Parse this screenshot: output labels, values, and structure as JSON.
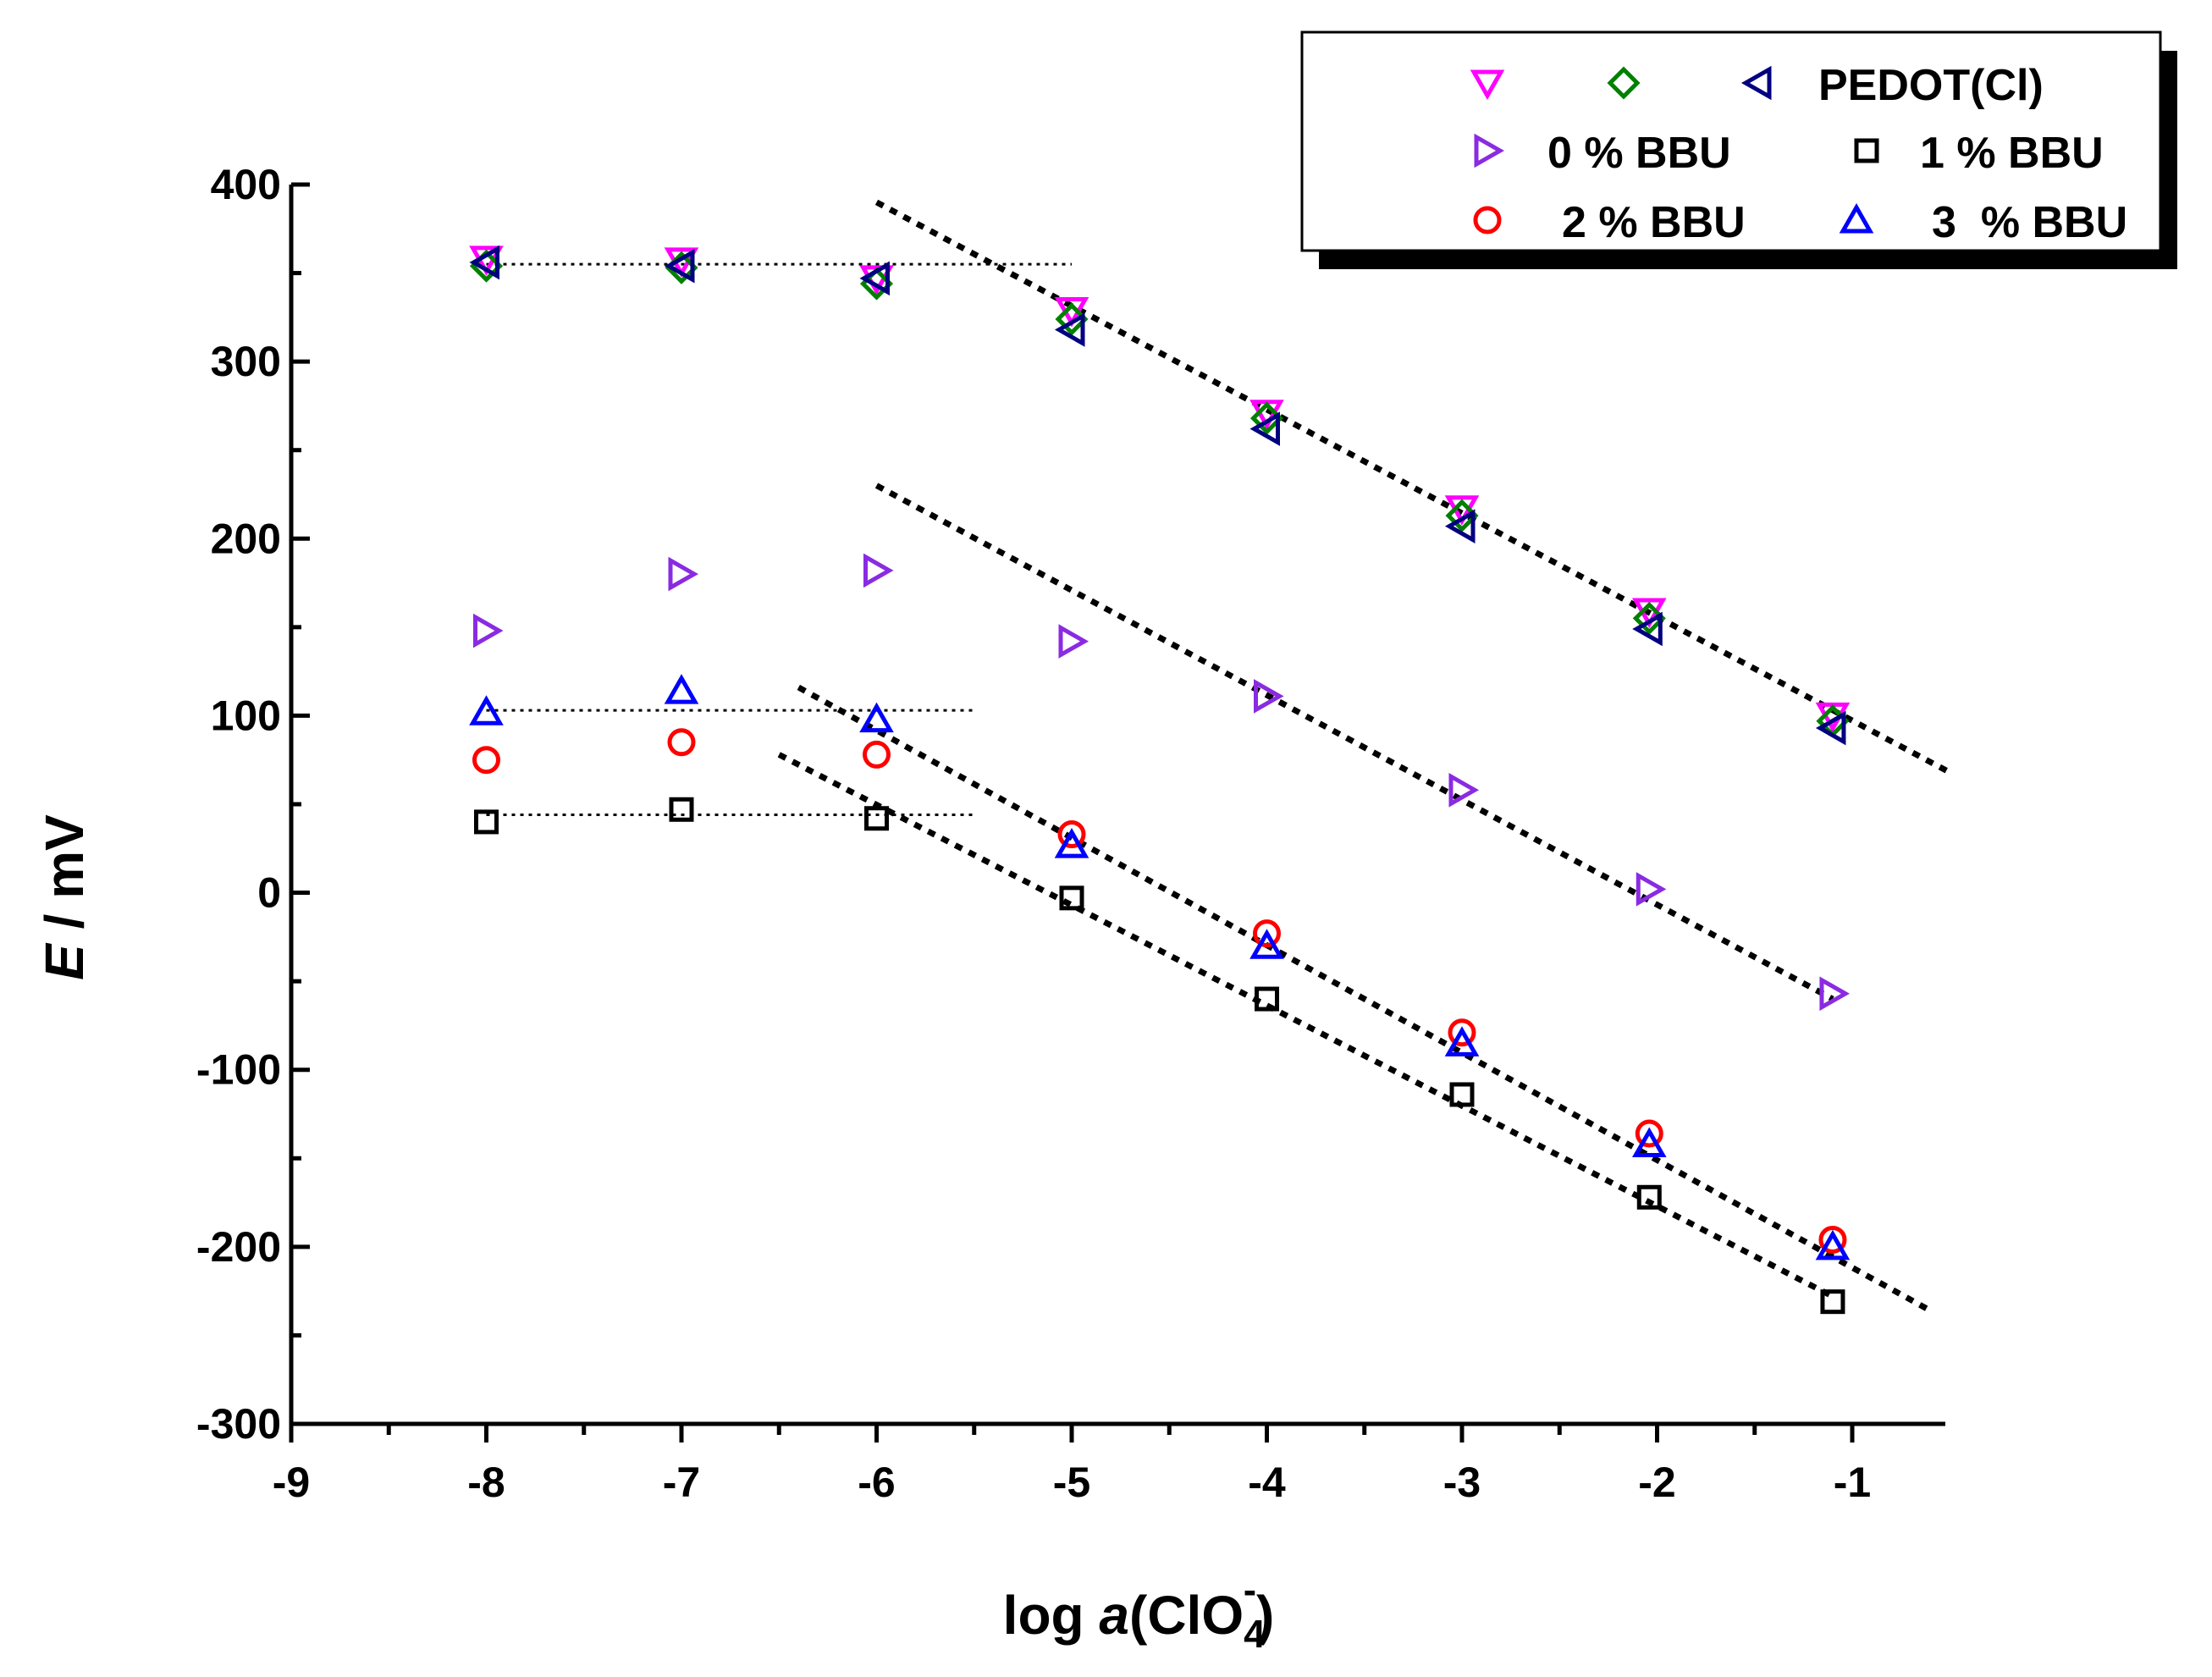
{
  "chart_data": {
    "type": "scatter",
    "title": "",
    "xlabel_parts": [
      "log ",
      "a",
      "(ClO",
      "4",
      "-",
      ")"
    ],
    "ylabel_parts": [
      "E",
      " / mV"
    ],
    "xlim": [
      -9,
      -0.5
    ],
    "ylim": [
      -300,
      400
    ],
    "xticks": [
      -9,
      -8,
      -7,
      -6,
      -5,
      -4,
      -3,
      -2,
      -1
    ],
    "xtick_labels": [
      "-9",
      "-8",
      "-7",
      "-6",
      "-5",
      "-4",
      "-3",
      "-2",
      "-1"
    ],
    "yticks": [
      -300,
      -200,
      -100,
      0,
      100,
      200,
      300,
      400
    ],
    "ytick_labels": [
      "-300",
      "-200",
      "-100",
      "0",
      "100",
      "200",
      "300",
      "400"
    ],
    "grid": false,
    "legend_position": "top-right",
    "series": [
      {
        "name": "PEDOT(Cl) down-triangle",
        "legend_label": "",
        "marker": "triangle-down",
        "color": "#ff00ff",
        "x": [
          -8,
          -7,
          -6,
          -5,
          -4,
          -3,
          -2.04,
          -1.1
        ],
        "y": [
          358,
          357,
          347,
          329,
          271,
          217,
          159,
          100
        ]
      },
      {
        "name": "PEDOT(Cl) diamond",
        "legend_label": "",
        "marker": "diamond",
        "color": "#008000",
        "x": [
          -8,
          -7,
          -6,
          -5,
          -4,
          -3,
          -2.04,
          -1.1
        ],
        "y": [
          354,
          353,
          344,
          324,
          268,
          213,
          155,
          97
        ]
      },
      {
        "name": "PEDOT(Cl)",
        "legend_label": "PEDOT(Cl)",
        "marker": "triangle-left",
        "color": "#000080",
        "x": [
          -8,
          -7,
          -6,
          -5,
          -4,
          -3,
          -2.04,
          -1.1
        ],
        "y": [
          356,
          354,
          347,
          318,
          262,
          207,
          149,
          93
        ]
      },
      {
        "name": "0 % BBU",
        "legend_label": "0 % BBU",
        "marker": "triangle-right",
        "color": "#8a2be2",
        "x": [
          -8,
          -7,
          -6,
          -5,
          -4,
          -3,
          -2.04,
          -1.1
        ],
        "y": [
          148,
          180,
          182,
          142,
          111,
          58,
          2,
          -57
        ]
      },
      {
        "name": "1 % BBU",
        "legend_label": "1 % BBU",
        "marker": "square",
        "color": "#000000",
        "x": [
          -8,
          -7,
          -6,
          -5,
          -4,
          -3,
          -2.04,
          -1.1
        ],
        "y": [
          40,
          47,
          42,
          -3,
          -60,
          -114,
          -172,
          -231
        ]
      },
      {
        "name": "2 % BBU",
        "legend_label": "2 % BBU",
        "marker": "circle",
        "color": "#ff0000",
        "x": [
          -8,
          -7,
          -6,
          -5,
          -4,
          -3,
          -2.04,
          -1.1
        ],
        "y": [
          75,
          85,
          78,
          33,
          -23,
          -79,
          -136,
          -196
        ]
      },
      {
        "name": "3  % BBU",
        "legend_label": "3  % BBU",
        "marker": "triangle-up",
        "color": "#0000ff",
        "x": [
          -8,
          -7,
          -6,
          -5,
          -4,
          -3,
          -2.04,
          -1.1
        ],
        "y": [
          102,
          114,
          98,
          27,
          -30,
          -85,
          -142,
          -200
        ]
      }
    ],
    "fit_lines": [
      {
        "name": "pedot-plateau",
        "x": [
          -8,
          -5.0
        ],
        "y": [
          355,
          355
        ],
        "style": "dotted-fine"
      },
      {
        "name": "bbu-high-plateau",
        "x": [
          -8,
          -5.5
        ],
        "y": [
          103,
          103
        ],
        "style": "dotted-fine"
      },
      {
        "name": "bbu-low-plateau",
        "x": [
          -8,
          -5.5
        ],
        "y": [
          44,
          44
        ],
        "style": "dotted-fine"
      },
      {
        "name": "pedot-slope",
        "x": [
          -6,
          -0.5
        ],
        "y": [
          390,
          68
        ],
        "style": "dashed"
      },
      {
        "name": "zero-bbu-slope",
        "x": [
          -6,
          -1.1
        ],
        "y": [
          230,
          -60
        ],
        "style": "dashed"
      },
      {
        "name": "bbu-high-slope",
        "x": [
          -6.4,
          -0.6
        ],
        "y": [
          116,
          -236
        ],
        "style": "dashed"
      },
      {
        "name": "bbu-low-slope",
        "x": [
          -6.5,
          -1.1
        ],
        "y": [
          78,
          -228
        ],
        "style": "dashed"
      }
    ],
    "legend_rows": [
      [
        {
          "series": 0,
          "label": ""
        },
        {
          "series": 1,
          "label": ""
        },
        {
          "series": 2,
          "label": "PEDOT(Cl)"
        }
      ],
      [
        {
          "series": 3,
          "label": "0 % BBU"
        },
        {
          "series": 4,
          "label": "1 % BBU"
        }
      ],
      [
        {
          "series": 5,
          "label": "2 % BBU"
        },
        {
          "series": 6,
          "label": "3  % BBU"
        }
      ]
    ]
  }
}
